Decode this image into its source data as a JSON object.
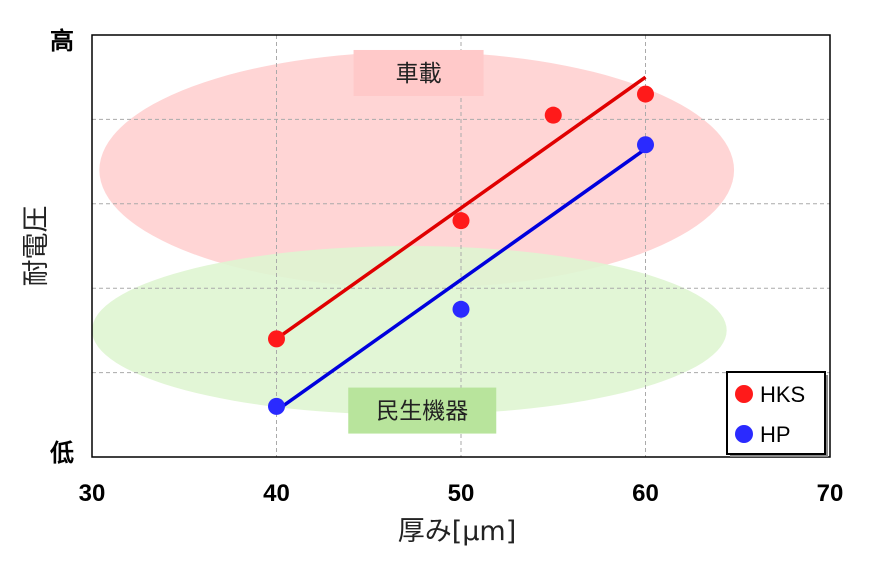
{
  "chart_data": {
    "type": "scatter",
    "xlabel": "厚み[μm]",
    "ylabel": "耐電圧",
    "xlim": [
      30,
      70
    ],
    "xticks": [
      30,
      40,
      50,
      60,
      70
    ],
    "ylim": [
      0,
      5
    ],
    "y_tick_labels": {
      "top": "高",
      "bottom": "低"
    },
    "grid": true,
    "legend_position": "bottom-right",
    "series": [
      {
        "name": "HKS",
        "color": "#ff1a1a",
        "line_color": "#e00000",
        "x": [
          40,
          50,
          55,
          60
        ],
        "y": [
          1.4,
          2.8,
          4.05,
          4.3
        ],
        "trend": {
          "x": [
            40,
            60
          ],
          "y": [
            1.4,
            4.5
          ]
        }
      },
      {
        "name": "HP",
        "color": "#2a2aff",
        "line_color": "#0000dd",
        "x": [
          40,
          50,
          60
        ],
        "y": [
          0.6,
          1.75,
          3.7
        ],
        "trend": {
          "x": [
            40,
            60
          ],
          "y": [
            0.55,
            3.65
          ]
        }
      }
    ],
    "regions": [
      {
        "label": "車載",
        "fill": "#ffd0d0",
        "label_bg": "#ffc9c9",
        "center": [
          47.6,
          3.4
        ],
        "rx_data": 17.2,
        "ry_data": 1.4
      },
      {
        "label": "民生機器",
        "fill": "#dff5d2",
        "label_bg": "#b8e49c",
        "center": [
          47.2,
          1.5
        ],
        "rx_data": 17.2,
        "ry_data": 1.0
      }
    ]
  }
}
